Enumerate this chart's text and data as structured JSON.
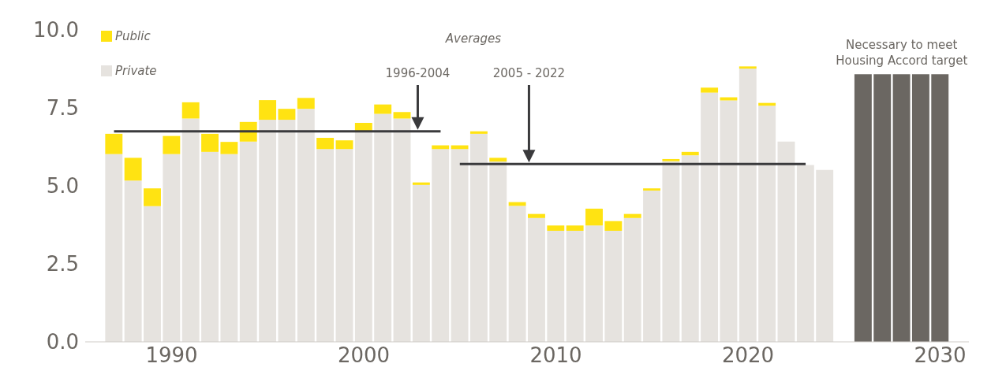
{
  "chart_data": {
    "type": "bar",
    "stacked": true,
    "legend": "top left",
    "xlim": [
      1985.5,
      2031.5
    ],
    "xticks": [
      1990,
      2000,
      2010,
      2020,
      2030
    ],
    "ylim": [
      0,
      10
    ],
    "yticks": [
      {
        "value": 0,
        "label": "0.0"
      },
      {
        "value": 2.5,
        "label": "2.5"
      },
      {
        "value": 5,
        "label": "5.0"
      },
      {
        "value": 7.5,
        "label": "7.5"
      },
      {
        "value": 10,
        "label": "10.0"
      }
    ],
    "x": [
      1987,
      1988,
      1989,
      1990,
      1991,
      1992,
      1993,
      1994,
      1995,
      1996,
      1997,
      1998,
      1999,
      2000,
      2001,
      2002,
      2003,
      2004,
      2005,
      2006,
      2007,
      2008,
      2009,
      2010,
      2011,
      2012,
      2013,
      2014,
      2015,
      2016,
      2017,
      2018,
      2019,
      2020,
      2021,
      2022,
      2023,
      2024,
      2026,
      2027,
      2028,
      2029,
      2030
    ],
    "series": [
      {
        "name": "Private",
        "color": "#e6e3df",
        "values": [
          6.02,
          5.17,
          4.35,
          6.02,
          7.16,
          6.09,
          6.02,
          6.42,
          7.12,
          7.12,
          7.47,
          6.18,
          6.18,
          6.75,
          7.31,
          7.16,
          5.03,
          6.18,
          6.18,
          6.67,
          5.78,
          4.36,
          3.97,
          3.56,
          3.56,
          3.73,
          3.56,
          3.97,
          4.85,
          5.79,
          5.98,
          7.99,
          7.74,
          8.76,
          7.57,
          6.42,
          5.67,
          5.51,
          null,
          null,
          null,
          null,
          null
        ]
      },
      {
        "name": "Public",
        "color": "#ffe312",
        "values": [
          0.65,
          0.73,
          0.57,
          0.58,
          0.52,
          0.58,
          0.39,
          0.63,
          0.63,
          0.35,
          0.35,
          0.36,
          0.28,
          0.27,
          0.3,
          0.21,
          0.08,
          0.12,
          0.12,
          0.08,
          0.12,
          0.12,
          0.13,
          0.17,
          0.17,
          0.54,
          0.31,
          0.13,
          0.07,
          0.07,
          0.11,
          0.16,
          0.1,
          0.07,
          0.09,
          0,
          0,
          0,
          null,
          null,
          null,
          null,
          null
        ]
      },
      {
        "name": "Necessary to meet Housing Accord target",
        "color": "#6b6762",
        "values": [
          null,
          null,
          null,
          null,
          null,
          null,
          null,
          null,
          null,
          null,
          null,
          null,
          null,
          null,
          null,
          null,
          null,
          null,
          null,
          null,
          null,
          null,
          null,
          null,
          null,
          null,
          null,
          null,
          null,
          null,
          null,
          null,
          null,
          null,
          null,
          null,
          null,
          null,
          8.58,
          8.58,
          8.58,
          8.58,
          8.58
        ]
      },
      {
        "type": "line",
        "color": "#3a3a3c",
        "x": [
          1987,
          2004
        ],
        "values": [
          6.75,
          6.75
        ]
      },
      {
        "type": "line",
        "color": "#3a3a3c",
        "x": [
          2005,
          2023
        ],
        "values": [
          5.7,
          5.7
        ]
      }
    ],
    "annotations": [
      "Averages",
      "1996-2004",
      "2005 - 2022"
    ]
  }
}
